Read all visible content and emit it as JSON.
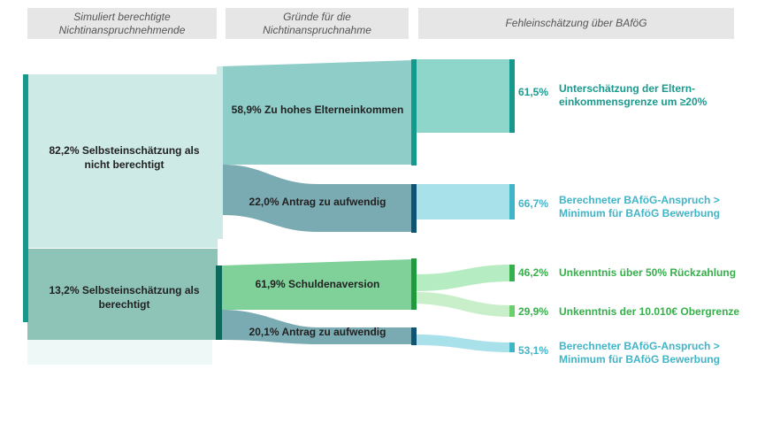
{
  "headers": {
    "col1": "Simuliert berechtigte\nNichtinanspruchnehmende",
    "col2": "Gründe für die\nNichtinanspruchnahme",
    "col3": "Fehleinschätzung über BAföG"
  },
  "nodes": {
    "n1": "82,2% Selbsteinschätzung als nicht berechtigt",
    "n2": "13,2% Selbsteinschätzung als berechtigt",
    "r1": "58,9% Zu hohes Elterneinkommen",
    "r2": "22,0% Antrag zu aufwendig",
    "r3": "61,9% Schuldenaversion",
    "r4": "20,1% Antrag zu aufwendig"
  },
  "outcomes": [
    {
      "pct": "61,5%",
      "line1": "Unterschätzung der Eltern-",
      "line2": "einkommensgrenze um  ≥20%"
    },
    {
      "pct": "66,7%",
      "line1": "Berechneter BAföG-Anspruch >",
      "line2": "Minimum für BAföG Bewerbung"
    },
    {
      "pct": "46,2%",
      "line1": "Unkenntnis über 50% Rückzahlung",
      "line2": ""
    },
    {
      "pct": "29,9%",
      "line1": "Unkenntnis der 10.010€ Obergrenze",
      "line2": ""
    },
    {
      "pct": "53,1%",
      "line1": "Berechneter BAföG-Anspruch >",
      "line2": "Minimum für BAföG Bewerbung"
    }
  ],
  "colors": {
    "teal_dark": "#14998c",
    "teal_light": "#cdeae6",
    "sage": "#8ec3b8",
    "slate": "#7aaab2",
    "navy": "#0f5474",
    "blue_light": "#a8e1ea",
    "cyan": "#3fb5c8",
    "green": "#35b04a",
    "green_light": "#b6ecc1",
    "mint": "#7fd099"
  }
}
